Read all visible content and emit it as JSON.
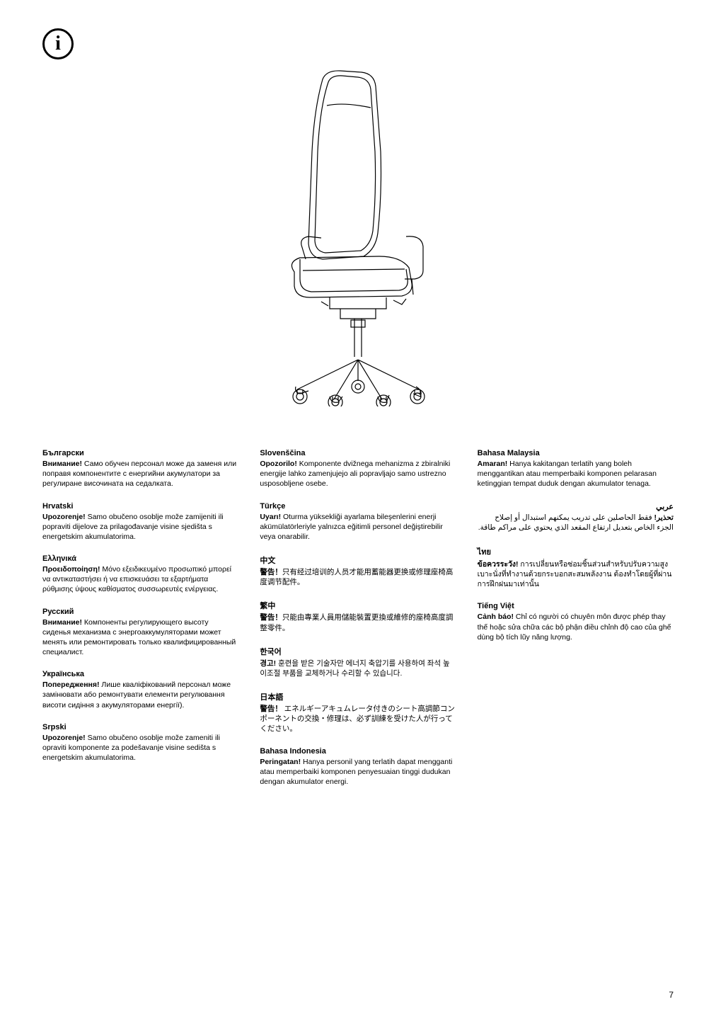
{
  "page_number": "7",
  "columns": [
    [
      {
        "lang": "Български",
        "warn": "Внимание!",
        "body": " Само обучен персонал може да заменя или поправя компонентите с енергийни акумулатори за регулиране височината на седалката."
      },
      {
        "lang": "Hrvatski",
        "warn": "Upozorenje!",
        "body": " Samo obučeno osoblje može zamijeniti ili popraviti dijelove za prilagođavanje visine sjedišta s energetskim akumulatorima."
      },
      {
        "lang": "Ελληνικά",
        "warn": "Προειδοποίηση!",
        "body": " Μόνο εξειδικευμένο προσωπικό μπορεί να αντικαταστήσει ή να επισκευάσει τα εξαρτήματα ρύθμισης ύψους καθίσματος συσσωρευτές ενέργειας."
      },
      {
        "lang": "Русский",
        "warn": "Внимание!",
        "body": " Компоненты регулирующего высоту сиденья механизма с энергоаккумуляторами может менять или ремонтировать только квалифицированный специалист."
      },
      {
        "lang": "Українська",
        "warn": "Попередження!",
        "body": " Лише кваліфікований персонал може замінювати або ремонтувати елементи регулювання висоти сидіння з акумуляторами енергії)."
      },
      {
        "lang": "Srpski",
        "warn": "Upozorenje!",
        "body": " Samo obučeno osoblje može zameniti ili opraviti komponente za podešavanje visine sedišta s energetskim akumulatorima."
      }
    ],
    [
      {
        "lang": "Slovenščina",
        "warn": "Opozorilo!",
        "body": " Komponente dvižnega mehanizma z zbiralniki energije lahko zamenjujejo ali popravljajo samo ustrezno usposobljene osebe."
      },
      {
        "lang": "Türkçe",
        "warn": "Uyarı!",
        "body": " Oturma yüksekliği ayarlama bileşenlerini enerji akümülatörleriyle yalnızca eğitimli personel değiştirebilir veya onarabilir."
      },
      {
        "lang": "中文",
        "warn": "警告！",
        "body": "只有经过培训的人员才能用蓄能器更换或修理座椅高度调节配件。"
      },
      {
        "lang": "繁中",
        "warn": "警告！",
        "body": "只能由專業人員用儲能裝置更換或維修的座椅高度調整零件。"
      },
      {
        "lang": "한국어",
        "warn": "경고!",
        "body": " 훈련을 받은 기술자만 에너지 축압기를 사용하여 좌석 높이조절 부품을 교체하거나 수리할 수 있습니다."
      },
      {
        "lang": "日本語",
        "warn": "警告！",
        "body": " エネルギーアキュムレータ付きのシート高調節コンポーネントの交換・修理は、必ず訓練を受けた人が行ってください。"
      },
      {
        "lang": "Bahasa Indonesia",
        "warn": "Peringatan!",
        "body": " Hanya personil yang terlatih dapat mengganti atau memperbaiki komponen penyesuaian tinggi dudukan dengan akumulator energi."
      }
    ],
    [
      {
        "lang": "Bahasa Malaysia",
        "warn": "Amaran!",
        "body": " Hanya kakitangan terlatih yang boleh menggantikan atau memperbaiki komponen pelarasan ketinggian tempat duduk dengan akumulator tenaga."
      },
      {
        "lang": "عربي",
        "rtl": true,
        "warn": "تحذير!",
        "body": " فقط الحاصلين على تدريب يمكنهم استبدال أو إصلاح الجزء الخاص بتعديل ارتفاع المقعد الذي يحتوي على مراكم طاقة."
      },
      {
        "lang": "ไทย",
        "warn": "ข้อควรระวัง!",
        "body": " การเปลี่ยนหรือซ่อมชิ้นส่วนสำหรับปรับความสูงเบาะนั่งที่ทำงานด้วยกระบอกสะสมพลังงาน ต้องทำโดยผู้ที่ผ่านการฝึกฝนมาเท่านั้น"
      },
      {
        "lang": "Tiếng Việt",
        "warn": "Cảnh báo!",
        "body": " Chỉ có người có chuyên môn được phép thay thế hoặc sửa chữa các bộ phận điều chỉnh độ cao của ghế dùng bộ tích lũy năng lượng."
      }
    ]
  ]
}
